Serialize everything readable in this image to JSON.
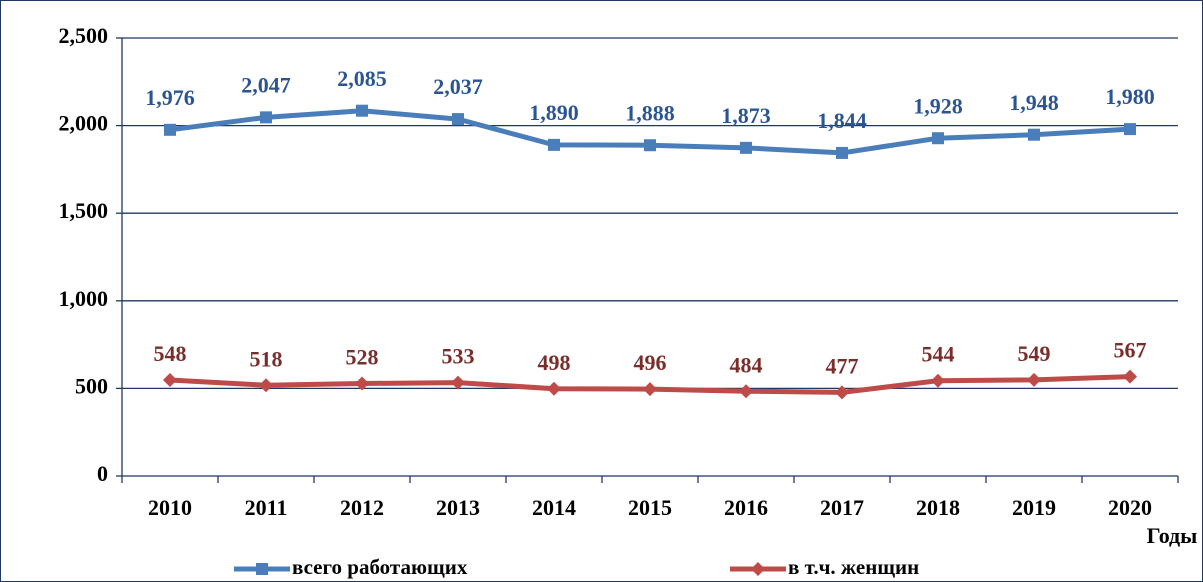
{
  "chart_data": {
    "type": "line",
    "categories": [
      "2010",
      "2011",
      "2012",
      "2013",
      "2014",
      "2015",
      "2016",
      "2017",
      "2018",
      "2019",
      "2020"
    ],
    "series": [
      {
        "name": "всего работающих",
        "color": "#4a7ebb",
        "label_color": "#2a5592",
        "values": [
          1976,
          2047,
          2085,
          2037,
          1890,
          1888,
          1873,
          1844,
          1928,
          1948,
          1980
        ],
        "value_labels": [
          "1,976",
          "2,047",
          "2,085",
          "2,037",
          "1,890",
          "1,888",
          "1,873",
          "1,844",
          "1,928",
          "1,948",
          "1,980"
        ]
      },
      {
        "name": "в т.ч. женщин",
        "color": "#be4b48",
        "label_color": "#7a2e2c",
        "values": [
          548,
          518,
          528,
          533,
          498,
          496,
          484,
          477,
          544,
          549,
          567
        ]
      }
    ],
    "x_label": "Годы",
    "ylim": [
      0,
      2500
    ],
    "yticks": [
      0,
      500,
      {
        "value": 1000,
        "label": "1,000"
      },
      {
        "value": 1500,
        "label": "1,500"
      },
      {
        "value": 2000,
        "label": "2,000"
      },
      {
        "value": 2500,
        "label": "2,500"
      }
    ],
    "grid": true
  }
}
